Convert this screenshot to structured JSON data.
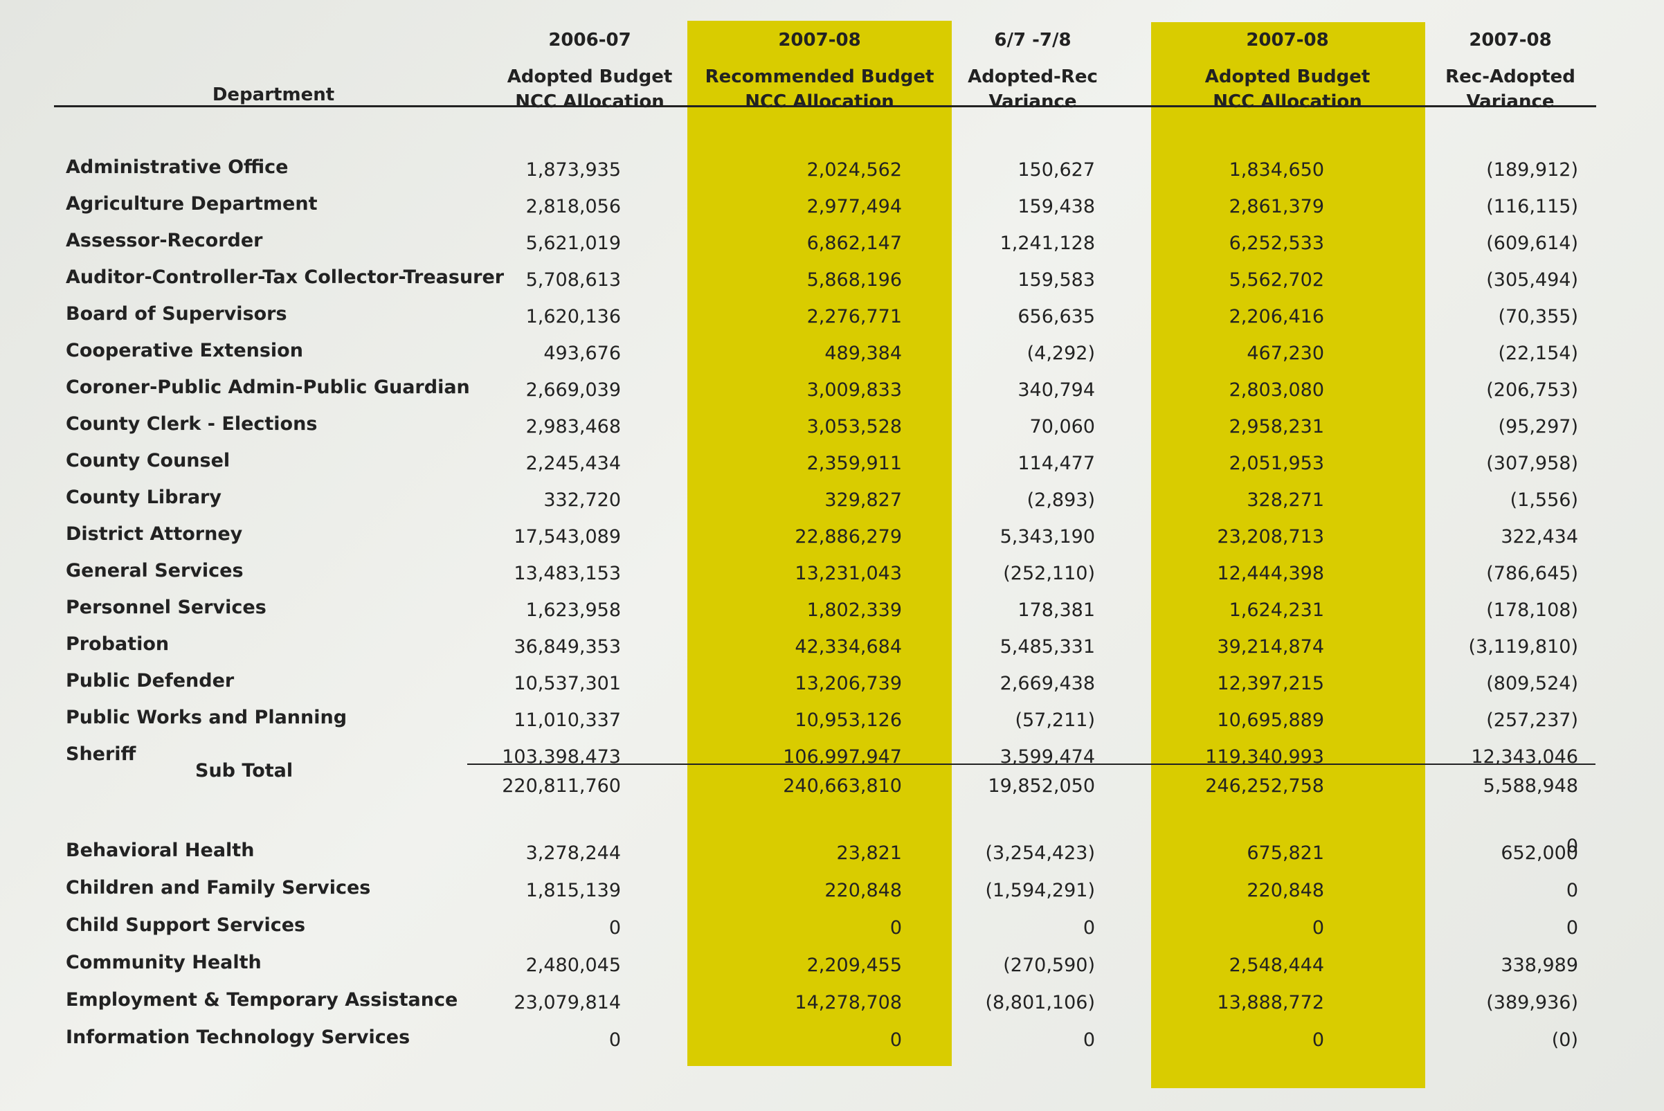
{
  "header": {
    "department": "Department",
    "columns": [
      [
        "2006-07",
        "Adopted Budget",
        "NCC Allocation"
      ],
      [
        "2007-08",
        "Recommended Budget",
        "NCC Allocation"
      ],
      [
        "6/7 -7/8",
        "Adopted-Rec",
        "Variance"
      ],
      [
        "2007-08",
        "Adopted Budget",
        "NCC Allocation"
      ],
      [
        "2007-08",
        "Rec-Adopted",
        "Variance"
      ]
    ]
  },
  "table": {
    "rows": [
      {
        "department": "Administrative Office",
        "values": [
          "1,873,935",
          "2,024,562",
          "150,627",
          "1,834,650",
          "(189,912)"
        ]
      },
      {
        "department": "Agriculture Department",
        "values": [
          "2,818,056",
          "2,977,494",
          "159,438",
          "2,861,379",
          "(116,115)"
        ]
      },
      {
        "department": "Assessor-Recorder",
        "values": [
          "5,621,019",
          "6,862,147",
          "1,241,128",
          "6,252,533",
          "(609,614)"
        ]
      },
      {
        "department": "Auditor-Controller-Tax Collector-Treasurer",
        "values": [
          "5,708,613",
          "5,868,196",
          "159,583",
          "5,562,702",
          "(305,494)"
        ]
      },
      {
        "department": "Board of Supervisors",
        "values": [
          "1,620,136",
          "2,276,771",
          "656,635",
          "2,206,416",
          "(70,355)"
        ]
      },
      {
        "department": "Cooperative Extension",
        "values": [
          "493,676",
          "489,384",
          "(4,292)",
          "467,230",
          "(22,154)"
        ]
      },
      {
        "department": "Coroner-Public Admin-Public Guardian",
        "values": [
          "2,669,039",
          "3,009,833",
          "340,794",
          "2,803,080",
          "(206,753)"
        ]
      },
      {
        "department": "County Clerk - Elections",
        "values": [
          "2,983,468",
          "3,053,528",
          "70,060",
          "2,958,231",
          "(95,297)"
        ]
      },
      {
        "department": "County Counsel",
        "values": [
          "2,245,434",
          "2,359,911",
          "114,477",
          "2,051,953",
          "(307,958)"
        ]
      },
      {
        "department": "County Library",
        "values": [
          "332,720",
          "329,827",
          "(2,893)",
          "328,271",
          "(1,556)"
        ]
      },
      {
        "department": "District Attorney",
        "values": [
          "17,543,089",
          "22,886,279",
          "5,343,190",
          "23,208,713",
          "322,434"
        ]
      },
      {
        "department": "General Services",
        "values": [
          "13,483,153",
          "13,231,043",
          "(252,110)",
          "12,444,398",
          "(786,645)"
        ]
      },
      {
        "department": "Personnel Services",
        "values": [
          "1,623,958",
          "1,802,339",
          "178,381",
          "1,624,231",
          "(178,108)"
        ]
      },
      {
        "department": "Probation",
        "values": [
          "36,849,353",
          "42,334,684",
          "5,485,331",
          "39,214,874",
          "(3,119,810)"
        ]
      },
      {
        "department": "Public Defender",
        "values": [
          "10,537,301",
          "13,206,739",
          "2,669,438",
          "12,397,215",
          "(809,524)"
        ]
      },
      {
        "department": "Public Works and Planning",
        "values": [
          "11,010,337",
          "10,953,126",
          "(57,211)",
          "10,695,889",
          "(257,237)"
        ]
      },
      {
        "department": "Sheriff",
        "values": [
          "103,398,473",
          "106,997,947",
          "3,599,474",
          "119,340,993",
          "12,343,046"
        ]
      }
    ],
    "subtotal": {
      "label": "Sub Total",
      "values": [
        "220,811,760",
        "240,663,810",
        "19,852,050",
        "246,252,758",
        "5,588,948"
      ]
    },
    "rows2": [
      {
        "department": null,
        "values": [
          null,
          null,
          null,
          null,
          "0"
        ]
      },
      {
        "department": "Behavioral Health",
        "values": [
          "3,278,244",
          "23,821",
          "(3,254,423)",
          "675,821",
          "652,000"
        ]
      },
      {
        "department": "Children and Family Services",
        "values": [
          "1,815,139",
          "220,848",
          "(1,594,291)",
          "220,848",
          "0"
        ]
      },
      {
        "department": "Child Support Services",
        "values": [
          "0",
          "0",
          "0",
          "0",
          "0"
        ]
      },
      {
        "department": "Community Health",
        "values": [
          "2,480,045",
          "2,209,455",
          "(270,590)",
          "2,548,444",
          "338,989"
        ]
      },
      {
        "department": "Employment & Temporary Assistance",
        "values": [
          "23,079,814",
          "14,278,708",
          "(8,801,106)",
          "13,888,772",
          "(389,936)"
        ]
      },
      {
        "department": "Information Technology Services",
        "values": [
          "0",
          "0",
          "0",
          "0",
          "(0)"
        ]
      }
    ]
  }
}
